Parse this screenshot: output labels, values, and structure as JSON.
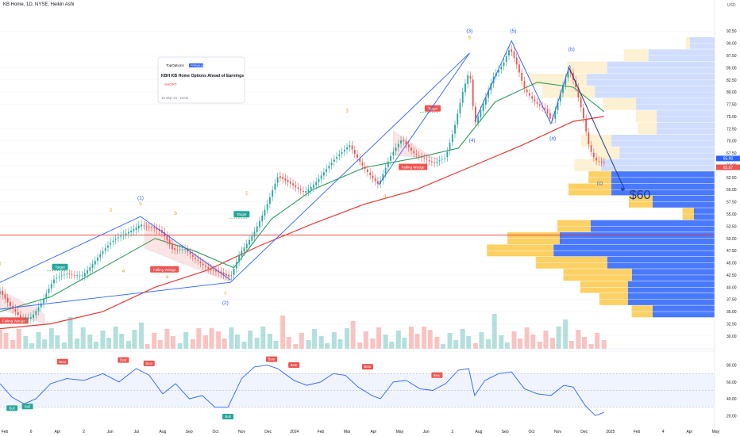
{
  "header": {
    "title": "KB Home, 1D, NYSE, Heikin Ashi",
    "currency": "USD"
  },
  "news_card": {
    "brand": "TopOptions",
    "badge": "PREMIUM",
    "headline": "KBH KB Home Options Ahead of Earnings",
    "tag": "SHORT",
    "date": "15 Sep '23 - 23:02"
  },
  "colors": {
    "candle_up": "#26a69a",
    "candle_down": "#ef5350",
    "wave_label": "#f0a030",
    "wave_label_blue": "#2962ff",
    "channel": "#2962ff",
    "ma_long": "#e53935",
    "ma_short": "#2e9b5a",
    "hline": "#e53935",
    "vp_up": "#fbc02d",
    "vp_down": "#2962ff",
    "rsi_line": "#2962ff",
    "rsi_band": "#2962ff"
  },
  "chart_data": {
    "type": "candlestick",
    "symbol": "KBH",
    "y_axis": {
      "ticks": [
        "92.50",
        "90.00",
        "87.50",
        "85.00",
        "82.50",
        "80.00",
        "77.50",
        "75.00",
        "72.50",
        "70.00",
        "67.50",
        "65.00",
        "62.50",
        "60.00",
        "57.50",
        "55.00",
        "52.50",
        "50.00",
        "47.50",
        "45.00",
        "42.50",
        "40.00",
        "37.50",
        "35.00",
        "32.50",
        "30.00"
      ],
      "range": [
        29,
        94
      ]
    },
    "x_axis": {
      "ticks": [
        "Feb",
        "6",
        "Apr",
        "2",
        "Jun",
        "Jul",
        "Aug",
        "Sep",
        "Oct",
        "Nov",
        "Dec",
        "2024",
        "Feb",
        "Mar",
        "Apr",
        "May",
        "Jun",
        "2",
        "Aug",
        "Sep",
        "Oct",
        "Nov",
        "Dec",
        "2025",
        "Feb",
        "4",
        "Apr",
        "May"
      ],
      "range": [
        "2023-02-01",
        "2025-05-15"
      ]
    },
    "price_labels": {
      "kbh": "65.90",
      "last": "65.07"
    },
    "price_path": [
      [
        "2023-02-01",
        38.5
      ],
      [
        "2023-02-12",
        36.0
      ],
      [
        "2023-02-26",
        34.0
      ],
      [
        "2023-03-10",
        34.5
      ],
      [
        "2023-03-22",
        37.0
      ],
      [
        "2023-04-05",
        41.0
      ],
      [
        "2023-04-20",
        42.5
      ],
      [
        "2023-05-08",
        43.0
      ],
      [
        "2023-05-25",
        46.0
      ],
      [
        "2023-06-10",
        48.5
      ],
      [
        "2023-06-28",
        51.0
      ],
      [
        "2023-07-15",
        53.5
      ],
      [
        "2023-07-28",
        52.5
      ],
      [
        "2023-08-08",
        51.0
      ],
      [
        "2023-08-22",
        47.0
      ],
      [
        "2023-09-05",
        48.0
      ],
      [
        "2023-09-20",
        46.0
      ],
      [
        "2023-10-05",
        43.5
      ],
      [
        "2023-10-20",
        42.0
      ],
      [
        "2023-10-28",
        41.5
      ],
      [
        "2023-11-08",
        47.0
      ],
      [
        "2023-11-25",
        52.0
      ],
      [
        "2023-12-10",
        57.0
      ],
      [
        "2023-12-22",
        62.0
      ],
      [
        "2024-01-05",
        61.0
      ],
      [
        "2024-01-22",
        60.0
      ],
      [
        "2024-02-05",
        62.0
      ],
      [
        "2024-02-20",
        64.5
      ],
      [
        "2024-03-05",
        67.0
      ],
      [
        "2024-03-15",
        69.0
      ],
      [
        "2024-03-28",
        66.0
      ],
      [
        "2024-04-08",
        63.5
      ],
      [
        "2024-04-18",
        61.0
      ],
      [
        "2024-05-01",
        66.0
      ],
      [
        "2024-05-15",
        70.0
      ],
      [
        "2024-05-28",
        68.0
      ],
      [
        "2024-06-10",
        67.0
      ],
      [
        "2024-06-22",
        65.5
      ],
      [
        "2024-07-05",
        66.0
      ],
      [
        "2024-07-15",
        72.0
      ],
      [
        "2024-07-25",
        80.0
      ],
      [
        "2024-08-02",
        85.0
      ],
      [
        "2024-08-08",
        74.0
      ],
      [
        "2024-08-18",
        78.0
      ],
      [
        "2024-08-30",
        83.0
      ],
      [
        "2024-09-10",
        85.0
      ],
      [
        "2024-09-18",
        88.5
      ],
      [
        "2024-09-25",
        86.0
      ],
      [
        "2024-10-05",
        81.0
      ],
      [
        "2024-10-18",
        78.5
      ],
      [
        "2024-10-30",
        76.5
      ],
      [
        "2024-11-06",
        73.5
      ],
      [
        "2024-11-16",
        79.0
      ],
      [
        "2024-11-26",
        84.5
      ],
      [
        "2024-12-04",
        81.0
      ],
      [
        "2024-12-12",
        76.0
      ],
      [
        "2024-12-20",
        69.0
      ],
      [
        "2024-12-27",
        66.5
      ],
      [
        "2025-01-06",
        65.5
      ]
    ],
    "ma_long": [
      [
        "2023-02-01",
        31.5
      ],
      [
        "2023-04-01",
        32.5
      ],
      [
        "2023-06-01",
        35.0
      ],
      [
        "2023-08-01",
        40.0
      ],
      [
        "2023-10-01",
        43.5
      ],
      [
        "2023-12-01",
        48.5
      ],
      [
        "2024-02-01",
        53.0
      ],
      [
        "2024-04-01",
        57.0
      ],
      [
        "2024-06-01",
        60.0
      ],
      [
        "2024-08-01",
        64.5
      ],
      [
        "2024-10-01",
        69.0
      ],
      [
        "2024-12-01",
        74.0
      ],
      [
        "2025-01-06",
        75.0
      ]
    ],
    "ma_short": [
      [
        "2023-02-01",
        35.0
      ],
      [
        "2023-04-01",
        38.0
      ],
      [
        "2023-06-01",
        44.0
      ],
      [
        "2023-08-01",
        50.0
      ],
      [
        "2023-09-15",
        47.5
      ],
      [
        "2023-11-01",
        44.0
      ],
      [
        "2023-12-15",
        54.0
      ],
      [
        "2024-02-01",
        60.0
      ],
      [
        "2024-04-01",
        64.5
      ],
      [
        "2024-06-01",
        66.5
      ],
      [
        "2024-07-20",
        68.5
      ],
      [
        "2024-09-01",
        78.0
      ],
      [
        "2024-10-20",
        82.0
      ],
      [
        "2024-12-01",
        81.0
      ],
      [
        "2025-01-06",
        76.0
      ]
    ],
    "horizontal_line": 50.7,
    "projection": {
      "from": [
        "2024-11-26",
        85.0
      ],
      "to": [
        "2025-01-30",
        60.0
      ],
      "label": "$60"
    },
    "wave_labels": [
      {
        "text": "1",
        "date": "2023-02-01",
        "price": 44.5,
        "color": "orange"
      },
      {
        "text": "3",
        "date": "2023-06-10",
        "price": 55.5,
        "color": "orange"
      },
      {
        "text": "(1)",
        "date": "2023-07-15",
        "price": 58.0,
        "color": "blue"
      },
      {
        "text": "5",
        "date": "2023-07-15",
        "price": 56.8,
        "color": "orange"
      },
      {
        "text": "b",
        "date": "2023-08-25",
        "price": 54.8,
        "color": "orange"
      },
      {
        "text": "4",
        "date": "2023-06-25",
        "price": 43.0,
        "color": "orange"
      },
      {
        "text": "a",
        "date": "2023-08-15",
        "price": 41.8,
        "color": "orange"
      },
      {
        "text": "c",
        "date": "2023-10-22",
        "price": 38.5,
        "color": "orange"
      },
      {
        "text": "(2)",
        "date": "2023-10-22",
        "price": 36.5,
        "color": "blue"
      },
      {
        "text": "1",
        "date": "2023-11-16",
        "price": 59.0,
        "color": "orange"
      },
      {
        "text": "3",
        "date": "2024-03-12",
        "price": 75.8,
        "color": "orange"
      },
      {
        "text": "4",
        "date": "2024-04-25",
        "price": 58.3,
        "color": "orange"
      },
      {
        "text": "(3)",
        "date": "2024-08-02",
        "price": 92.2,
        "color": "blue"
      },
      {
        "text": "5",
        "date": "2024-08-02",
        "price": 90.8,
        "color": "orange"
      },
      {
        "text": "(4)",
        "date": "2024-08-05",
        "price": 69.8,
        "color": "blue"
      },
      {
        "text": "(5)",
        "date": "2024-09-22",
        "price": 92.2,
        "color": "blue"
      },
      {
        "text": "(a)",
        "date": "2024-11-07",
        "price": 70.2,
        "color": "blue"
      },
      {
        "text": "(b)",
        "date": "2024-11-29",
        "price": 88.5,
        "color": "blue"
      },
      {
        "text": "(c)",
        "date": "2025-01-01",
        "price": 61.0,
        "color": "blue"
      }
    ],
    "patterns": [
      {
        "label": "Falling Wedge",
        "start": "2023-02-01",
        "end": "2023-03-25",
        "top": [
          39.5,
          34.5
        ],
        "bot": [
          35.5,
          32.5
        ],
        "label_at": [
          "2023-02-17",
          33.0
        ]
      },
      {
        "label": "Falling Wedge",
        "start": "2023-07-20",
        "end": "2023-10-28",
        "top": [
          53.5,
          42.0
        ],
        "bot": [
          48.0,
          41.0
        ],
        "label_at": [
          "2023-08-12",
          43.5
        ]
      },
      {
        "label": "Falling Wedge",
        "start": "2024-05-05",
        "end": "2024-06-25",
        "top": [
          72.0,
          66.0
        ],
        "bot": [
          67.0,
          66.5
        ],
        "label_at": [
          "2024-05-28",
          64.5
        ]
      }
    ],
    "targets": [
      {
        "label": "Target",
        "date": "2023-04-12",
        "price": 44.0
      },
      {
        "label": "Target",
        "date": "2023-11-10",
        "price": 54.8
      },
      {
        "label": "Target",
        "date": "2024-06-20",
        "price": 76.5
      }
    ],
    "channels": [
      {
        "points": [
          [
            "2023-02-01",
            41.0
          ],
          [
            "2023-07-15",
            54.5
          ],
          [
            "2023-10-28",
            41.5
          ]
        ]
      },
      {
        "points": [
          [
            "2023-02-01",
            35.5
          ],
          [
            "2023-10-28",
            41.0
          ],
          [
            "2024-08-02",
            88.0
          ]
        ]
      },
      {
        "points": [
          [
            "2024-04-18",
            61.0
          ],
          [
            "2024-08-02",
            88.0
          ]
        ]
      },
      {
        "points": [
          [
            "2024-08-08",
            74.0
          ],
          [
            "2024-09-20",
            90.5
          ],
          [
            "2024-11-05",
            73.5
          ],
          [
            "2024-11-27",
            85.5
          ]
        ]
      }
    ],
    "volume_profile": [
      {
        "price": 90.0,
        "up": 0.04,
        "down": 0.12
      },
      {
        "price": 87.5,
        "up": 0.26,
        "down": 0.32
      },
      {
        "price": 85.0,
        "up": 0.42,
        "down": 0.52
      },
      {
        "price": 82.5,
        "up": 0.6,
        "down": 0.62
      },
      {
        "price": 80.0,
        "up": 0.55,
        "down": 0.58
      },
      {
        "price": 77.5,
        "up": 0.35,
        "down": 0.38
      },
      {
        "price": 75.0,
        "up": 0.22,
        "down": 0.28
      },
      {
        "price": 72.5,
        "up": 0.2,
        "down": 0.28
      },
      {
        "price": 70.0,
        "up": 0.32,
        "down": 0.5
      },
      {
        "price": 67.5,
        "up": 0.28,
        "down": 0.46
      },
      {
        "price": 65.0,
        "up": 0.28,
        "down": 0.55
      },
      {
        "price": 62.5,
        "up": 0.24,
        "down": 0.5
      },
      {
        "price": 60.0,
        "up": 0.45,
        "down": 0.5
      },
      {
        "price": 57.5,
        "up": 0.25,
        "down": 0.3
      },
      {
        "price": 55.0,
        "up": 0.12,
        "down": 0.1
      },
      {
        "price": 52.5,
        "up": 0.35,
        "down": 0.6
      },
      {
        "price": 50.0,
        "up": 0.55,
        "down": 0.75
      },
      {
        "price": 47.5,
        "up": 0.7,
        "down": 0.78
      },
      {
        "price": 45.0,
        "up": 0.75,
        "down": 0.52
      },
      {
        "price": 42.5,
        "up": 0.72,
        "down": 0.4
      },
      {
        "price": 40.0,
        "up": 0.5,
        "down": 0.42
      },
      {
        "price": 37.5,
        "up": 0.3,
        "down": 0.42
      },
      {
        "price": 35.0,
        "up": 0.22,
        "down": 0.3
      }
    ],
    "rsi": {
      "y_ticks": [
        "80.00",
        "60.00",
        "40.00",
        "20.00"
      ],
      "band": [
        30,
        70
      ],
      "path": [
        [
          "2023-02-01",
          58
        ],
        [
          "2023-02-15",
          42
        ],
        [
          "2023-03-01",
          34
        ],
        [
          "2023-03-15",
          40
        ],
        [
          "2023-04-01",
          58
        ],
        [
          "2023-04-20",
          64
        ],
        [
          "2023-05-10",
          62
        ],
        [
          "2023-06-01",
          70
        ],
        [
          "2023-06-20",
          60
        ],
        [
          "2023-07-10",
          76
        ],
        [
          "2023-07-25",
          68
        ],
        [
          "2023-08-10",
          46
        ],
        [
          "2023-08-25",
          58
        ],
        [
          "2023-09-10",
          40
        ],
        [
          "2023-09-25",
          44
        ],
        [
          "2023-10-10",
          30
        ],
        [
          "2023-10-25",
          30
        ],
        [
          "2023-11-10",
          64
        ],
        [
          "2023-11-25",
          78
        ],
        [
          "2023-12-10",
          80
        ],
        [
          "2023-12-22",
          76
        ],
        [
          "2024-01-10",
          62
        ],
        [
          "2024-01-25",
          56
        ],
        [
          "2024-02-10",
          60
        ],
        [
          "2024-02-25",
          70
        ],
        [
          "2024-03-10",
          68
        ],
        [
          "2024-03-25",
          54
        ],
        [
          "2024-04-10",
          44
        ],
        [
          "2024-04-20",
          40
        ],
        [
          "2024-05-05",
          60
        ],
        [
          "2024-05-20",
          62
        ],
        [
          "2024-06-05",
          52
        ],
        [
          "2024-06-20",
          50
        ],
        [
          "2024-07-05",
          58
        ],
        [
          "2024-07-20",
          74
        ],
        [
          "2024-08-01",
          76
        ],
        [
          "2024-08-08",
          44
        ],
        [
          "2024-08-20",
          62
        ],
        [
          "2024-09-05",
          70
        ],
        [
          "2024-09-20",
          72
        ],
        [
          "2024-10-05",
          52
        ],
        [
          "2024-10-20",
          46
        ],
        [
          "2024-11-05",
          44
        ],
        [
          "2024-11-20",
          56
        ],
        [
          "2024-12-01",
          54
        ],
        [
          "2024-12-15",
          32
        ],
        [
          "2024-12-27",
          20
        ],
        [
          "2025-01-06",
          24
        ]
      ]
    },
    "markers": {
      "bear": [
        [
          "2023-04-15",
          78
        ],
        [
          "2023-06-25",
          80
        ],
        [
          "2023-07-25",
          76
        ],
        [
          "2023-12-15",
          81
        ],
        [
          "2024-01-10",
          74
        ],
        [
          "2024-04-05",
          72
        ],
        [
          "2024-06-25",
          62
        ]
      ],
      "bull": [
        [
          "2023-02-15",
          36
        ],
        [
          "2023-03-05",
          38
        ],
        [
          "2023-10-25",
          26
        ]
      ]
    },
    "volume_bars": 95
  }
}
